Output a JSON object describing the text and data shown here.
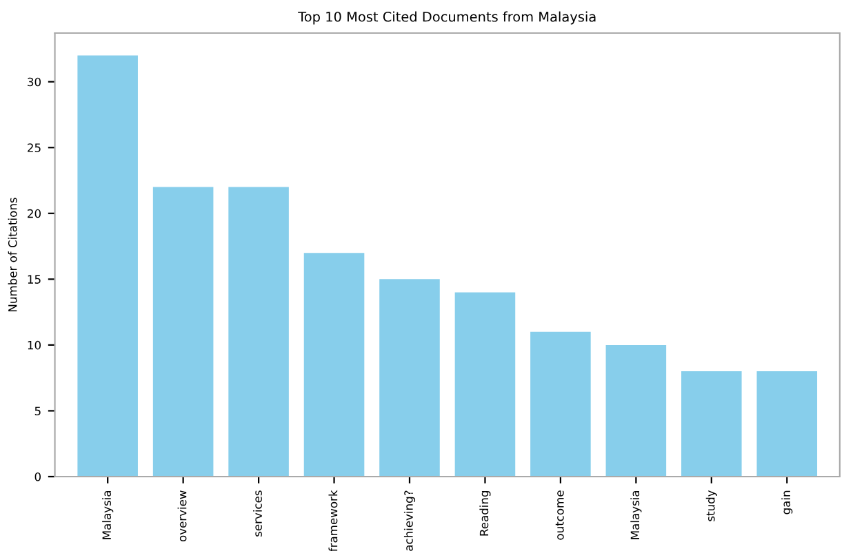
{
  "chart_data": {
    "type": "bar",
    "title": "Top 10 Most Cited Documents from Malaysia",
    "ylabel": "Number of Citations",
    "categories": [
      "Malaysia",
      "overview",
      "services",
      "framework",
      "achieving?",
      "Reading",
      "outcome",
      "Malaysia",
      "study",
      "gain"
    ],
    "values": [
      32,
      22,
      22,
      17,
      15,
      14,
      11,
      10,
      8,
      8
    ],
    "color": "#87ceeb",
    "ylim": [
      0,
      33.7
    ],
    "yticks": [
      0,
      5,
      10,
      15,
      20,
      25,
      30
    ],
    "grid": false
  }
}
